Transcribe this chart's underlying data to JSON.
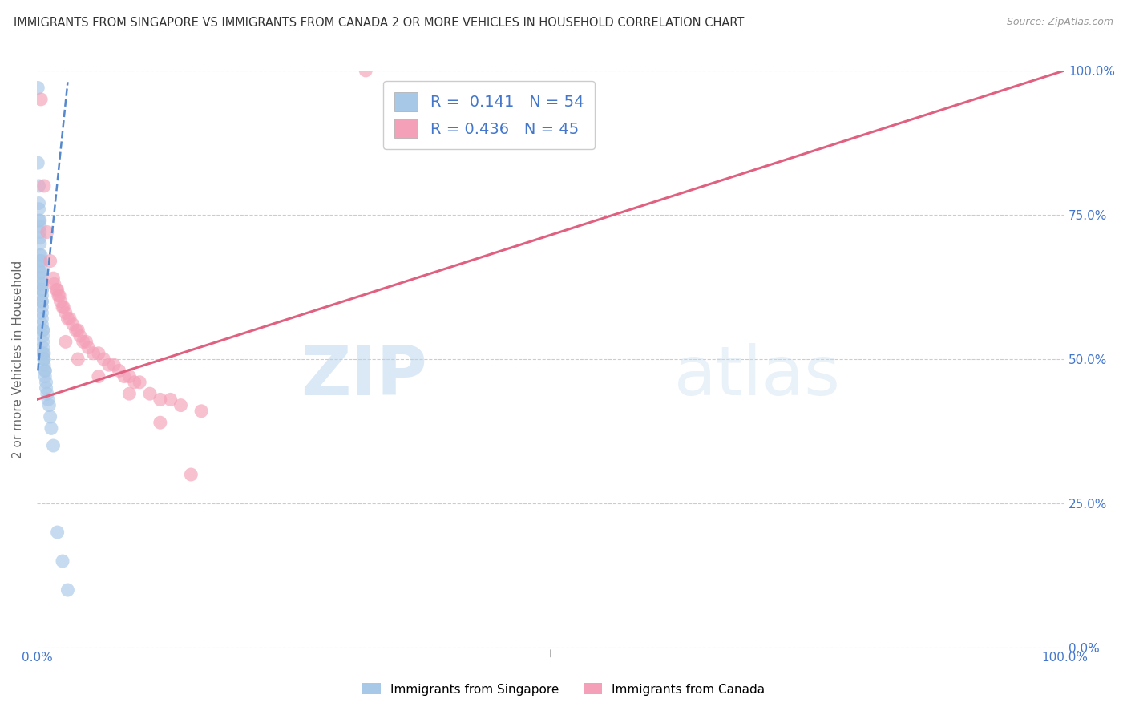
{
  "title": "IMMIGRANTS FROM SINGAPORE VS IMMIGRANTS FROM CANADA 2 OR MORE VEHICLES IN HOUSEHOLD CORRELATION CHART",
  "source": "Source: ZipAtlas.com",
  "ylabel": "2 or more Vehicles in Household",
  "watermark": "ZIPatlas",
  "singapore_R": 0.141,
  "singapore_N": 54,
  "canada_R": 0.436,
  "canada_N": 45,
  "singapore_color": "#a8c8e8",
  "canada_color": "#f4a0b8",
  "singapore_line_color": "#5588cc",
  "canada_line_color": "#e06080",
  "right_axis_color": "#4477cc",
  "axis_label_color": "#666666",
  "title_color": "#333333",
  "grid_color": "#cccccc",
  "background_color": "#ffffff",
  "singapore_x": [
    0.001,
    0.001,
    0.002,
    0.002,
    0.002,
    0.002,
    0.003,
    0.003,
    0.003,
    0.003,
    0.003,
    0.003,
    0.004,
    0.004,
    0.004,
    0.004,
    0.004,
    0.004,
    0.004,
    0.004,
    0.005,
    0.005,
    0.005,
    0.005,
    0.005,
    0.005,
    0.005,
    0.005,
    0.005,
    0.005,
    0.006,
    0.006,
    0.006,
    0.006,
    0.006,
    0.006,
    0.007,
    0.007,
    0.007,
    0.007,
    0.008,
    0.008,
    0.008,
    0.009,
    0.009,
    0.01,
    0.011,
    0.012,
    0.013,
    0.014,
    0.016,
    0.02,
    0.025,
    0.03
  ],
  "singapore_y": [
    0.97,
    0.84,
    0.8,
    0.77,
    0.76,
    0.74,
    0.74,
    0.73,
    0.72,
    0.71,
    0.7,
    0.68,
    0.68,
    0.67,
    0.67,
    0.66,
    0.65,
    0.65,
    0.64,
    0.63,
    0.63,
    0.62,
    0.62,
    0.61,
    0.6,
    0.6,
    0.59,
    0.58,
    0.57,
    0.56,
    0.55,
    0.55,
    0.54,
    0.53,
    0.52,
    0.51,
    0.51,
    0.5,
    0.5,
    0.49,
    0.48,
    0.48,
    0.47,
    0.46,
    0.45,
    0.44,
    0.43,
    0.42,
    0.4,
    0.38,
    0.35,
    0.2,
    0.15,
    0.1
  ],
  "canada_x": [
    0.004,
    0.007,
    0.01,
    0.013,
    0.016,
    0.017,
    0.019,
    0.02,
    0.021,
    0.022,
    0.023,
    0.025,
    0.026,
    0.028,
    0.03,
    0.032,
    0.035,
    0.038,
    0.04,
    0.042,
    0.045,
    0.048,
    0.05,
    0.055,
    0.06,
    0.065,
    0.07,
    0.075,
    0.08,
    0.085,
    0.09,
    0.095,
    0.1,
    0.11,
    0.12,
    0.13,
    0.14,
    0.16,
    0.028,
    0.04,
    0.06,
    0.09,
    0.12,
    0.15,
    0.32
  ],
  "canada_y": [
    0.95,
    0.8,
    0.72,
    0.67,
    0.64,
    0.63,
    0.62,
    0.62,
    0.61,
    0.61,
    0.6,
    0.59,
    0.59,
    0.58,
    0.57,
    0.57,
    0.56,
    0.55,
    0.55,
    0.54,
    0.53,
    0.53,
    0.52,
    0.51,
    0.51,
    0.5,
    0.49,
    0.49,
    0.48,
    0.47,
    0.47,
    0.46,
    0.46,
    0.44,
    0.43,
    0.43,
    0.42,
    0.41,
    0.53,
    0.5,
    0.47,
    0.44,
    0.39,
    0.3,
    1.0
  ],
  "canada_line_start_x": 0.0,
  "canada_line_start_y": 0.43,
  "canada_line_end_x": 1.0,
  "canada_line_end_y": 1.0,
  "singapore_line_start_x": 0.001,
  "singapore_line_start_y": 0.48,
  "singapore_line_end_x": 0.03,
  "singapore_line_end_y": 0.98,
  "yticks": [
    0.0,
    0.25,
    0.5,
    0.75,
    1.0
  ],
  "ytick_labels": [
    "0.0%",
    "25.0%",
    "50.0%",
    "75.0%",
    "100.0%"
  ],
  "xticks": [
    0.0,
    0.2,
    0.4,
    0.6,
    0.8,
    1.0
  ],
  "xtick_labels": [
    "0.0%",
    "",
    "",
    "",
    "",
    "100.0%"
  ]
}
